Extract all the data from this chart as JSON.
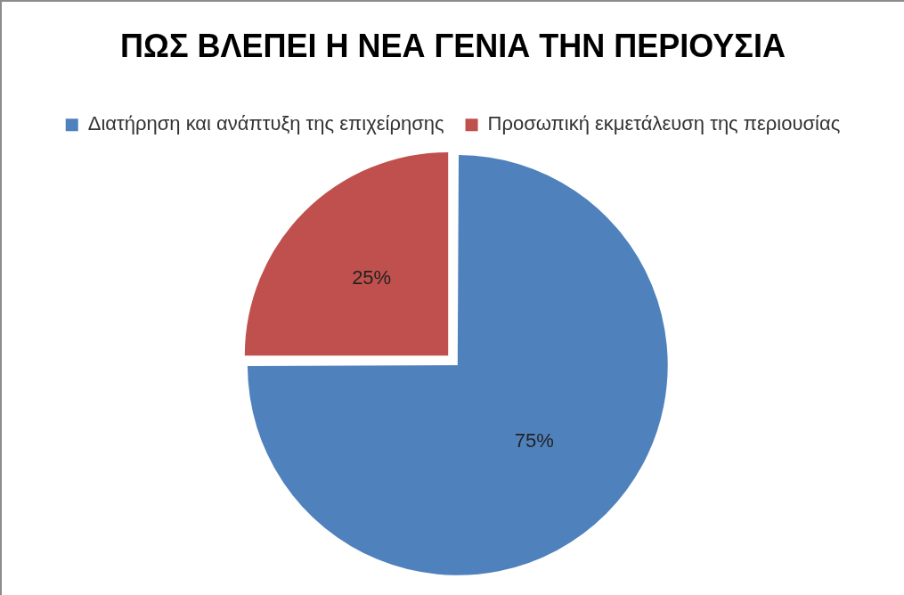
{
  "chart_data": {
    "type": "pie",
    "title": "ΠΩΣ ΒΛΕΠΕΙ Η ΝΕΑ ΓΕΝΙΑ ΤΗΝ ΠΕΡΙΟΥΣΙΑ",
    "categories": [
      "Διατήρηση και ανάπτυξη της επιχείρησης",
      "Προσωπική εκμετάλευση της περιουσίας"
    ],
    "values": [
      75,
      25
    ],
    "colors": [
      "#4f81bd",
      "#c0504d"
    ],
    "value_labels": [
      "75%",
      "25%"
    ],
    "legend": "top"
  }
}
